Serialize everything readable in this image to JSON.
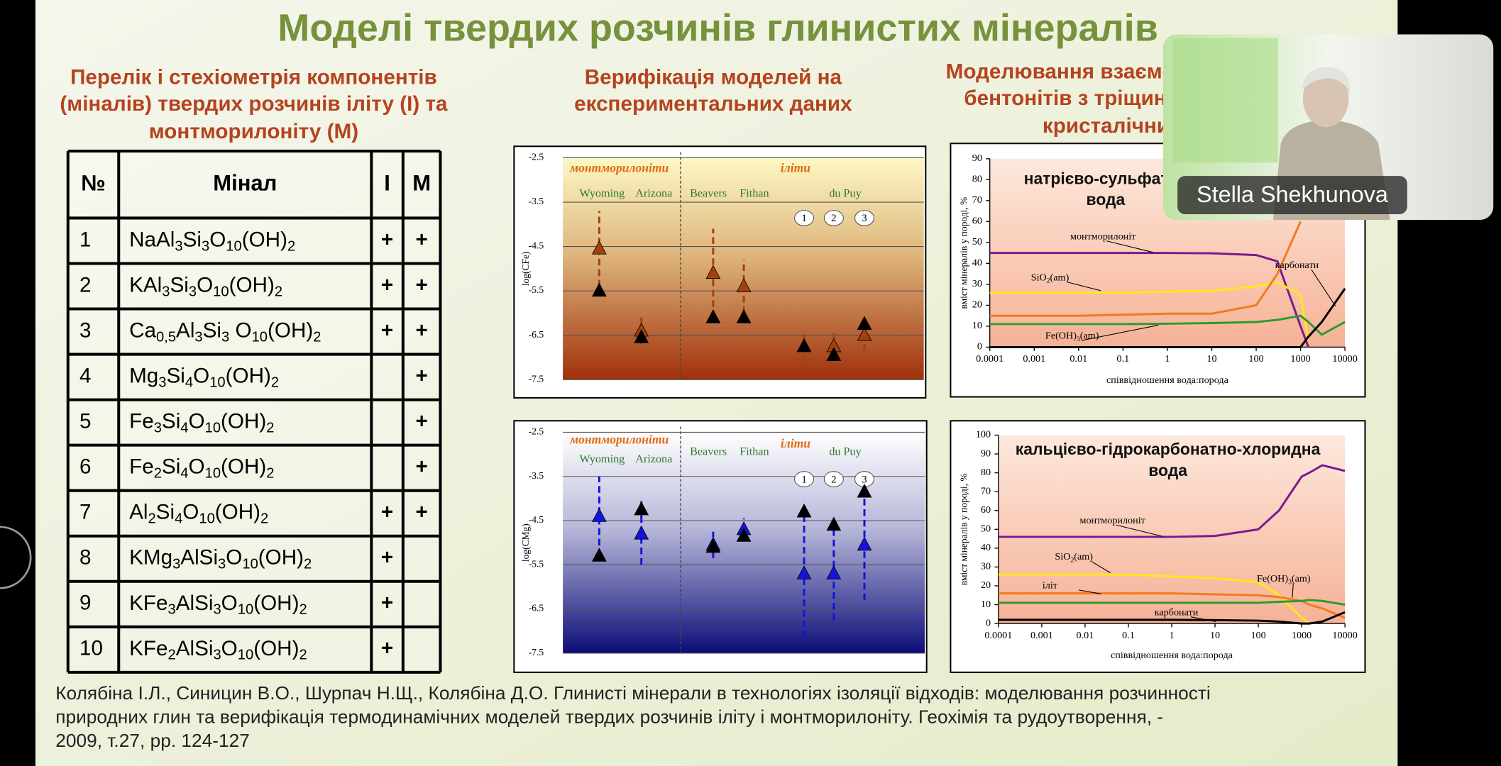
{
  "slide": {
    "title": "Моделі твердих розчинів глинистих мінералів",
    "columns": [
      {
        "heading": [
          "Перелік і стехіометрія компонентів",
          "(міналів) твердих розчинів іліту (I) та",
          "монтморилоніту (M)"
        ]
      },
      {
        "heading": [
          "Верифікація  моделей на",
          "експериментальних даних"
        ]
      },
      {
        "heading": [
          "Моделювання взаємодії",
          "бентонітів з тріщинуватими",
          "кристалічними породами"
        ]
      }
    ],
    "table": {
      "header": [
        "№",
        "Мінал",
        "I",
        "M"
      ],
      "rows": [
        [
          1,
          [
            "NaAl",
            "3",
            "Si",
            "3",
            "O",
            "10",
            "(OH)",
            "2"
          ],
          "+",
          "+"
        ],
        [
          2,
          [
            "KAl",
            "3",
            "Si",
            "3",
            "O",
            "10",
            "(OH)",
            "2"
          ],
          "+",
          "+"
        ],
        [
          3,
          [
            "Ca",
            "0,5",
            "Al",
            "3",
            "Si",
            "3",
            " O",
            "10",
            "(OH)",
            "2"
          ],
          "+",
          "+"
        ],
        [
          4,
          [
            "Mg",
            "3",
            "Si",
            "4",
            "O",
            "10",
            "(OH)",
            "2"
          ],
          null,
          "+"
        ],
        [
          5,
          [
            "Fe",
            "3",
            "Si",
            "4",
            "O",
            "10",
            "(OH)",
            "2"
          ],
          null,
          "+"
        ],
        [
          6,
          [
            "Fe",
            "2",
            "Si",
            "4",
            "O",
            "10",
            "(OH)",
            "2"
          ],
          null,
          "+"
        ],
        [
          7,
          [
            "Al",
            "2",
            "Si",
            "4",
            "O",
            "10",
            "(OH)",
            "2"
          ],
          "+",
          "+"
        ],
        [
          8,
          [
            "KMg",
            "3",
            "AlSi",
            "3",
            "O",
            "10",
            "(OH)",
            "2"
          ],
          "+",
          null
        ],
        [
          9,
          [
            "KFe",
            "3",
            "AlSi",
            "3",
            "O",
            "10",
            "(OH)",
            "2"
          ],
          "+",
          null
        ],
        [
          10,
          [
            "KFe",
            "2",
            "AlSi",
            "3",
            "O",
            "10",
            "(OH)",
            "2"
          ],
          "+",
          null
        ]
      ]
    },
    "citation": [
      "Колябіна І.Л., Синицин В.О., Шурпач Н.Щ., Колябіна Д.О. Глинисті мінерали в технологіях ізоляції відходів: моделювання розчинності",
      "природних глин та верифікація термодинамічних моделей твердих розчинів іліту і монтморилоніту. Геохімія та рудоутворення, -",
      "2009, т.27, pp. 124-127"
    ]
  },
  "chart_data": [
    {
      "type": "scatter",
      "y_label": "log(CFe)",
      "ylim": [
        -7.5,
        -2.5
      ],
      "yticks": [
        -2.5,
        -3.5,
        -4.5,
        -5.5,
        -6.5,
        -7.5
      ],
      "grid": true,
      "groups": [
        {
          "label": "монтморилоніти",
          "sites": [
            "Wyoming",
            "Arizona"
          ]
        },
        {
          "label": "іліти",
          "sites": [
            "Beavers",
            "Fithan",
            "du Puy"
          ]
        }
      ],
      "samples": [
        1,
        2,
        3
      ],
      "series": [
        {
          "color": "#a3410e",
          "values": [
            -4.55,
            -6.4,
            -5.1,
            -5.4,
            null,
            -6.75,
            -6.5
          ],
          "errors": [
            0.85,
            0.3,
            1.0,
            0.6,
            null,
            0.3,
            0.35
          ]
        },
        {
          "color": "#000000",
          "values": [
            -5.5,
            -6.55,
            -6.1,
            -6.1,
            -6.75,
            -6.95,
            -6.25
          ],
          "errors": [
            null,
            null,
            null,
            null,
            0.35,
            null,
            null
          ]
        }
      ]
    },
    {
      "type": "scatter",
      "y_label": "log(CMg)",
      "ylim": [
        -7.5,
        -2.5
      ],
      "yticks": [
        -2.5,
        -3.5,
        -4.5,
        -5.5,
        -6.5,
        -7.5
      ],
      "grid": true,
      "groups": [
        {
          "label": "монтморилоніти",
          "sites": [
            "Wyoming",
            "Arizona"
          ]
        },
        {
          "label": "іліти",
          "sites": [
            "Beavers",
            "Fithan",
            "du Puy"
          ]
        }
      ],
      "samples": [
        1,
        2,
        3
      ],
      "series": [
        {
          "color": "#1414d8",
          "values": [
            -4.4,
            -4.8,
            -5.05,
            -4.7,
            -5.7,
            -5.7,
            -5.05
          ],
          "errors": [
            0.9,
            0.7,
            0.3,
            0.25,
            1.45,
            1.05,
            1.25
          ]
        },
        {
          "color": "#000000",
          "values": [
            -5.3,
            -4.25,
            -5.1,
            -4.85,
            -4.3,
            -4.6,
            -3.85
          ],
          "errors": [
            null,
            0.2,
            null,
            null,
            null,
            null,
            null
          ]
        }
      ]
    },
    {
      "type": "line",
      "title": [
        "натрієво-сульфатна",
        "вода"
      ],
      "x_label": "співвідношення вода:порода",
      "y_label": "вміст мінералів у породі, %",
      "log_x": true,
      "xlim": [
        0.0001,
        10000
      ],
      "xticks": [
        0.0001,
        0.001,
        0.01,
        0.1,
        1,
        10,
        100,
        1000,
        10000
      ],
      "ylim": [
        0,
        90
      ],
      "yticks": [
        0,
        10,
        20,
        30,
        40,
        50,
        60,
        70,
        80,
        90
      ],
      "grid": false,
      "x": [
        0.0001,
        0.001,
        0.01,
        0.1,
        1,
        10,
        100,
        300,
        1000,
        1500,
        3000,
        10000
      ],
      "series": [
        {
          "name": [
            "монтморилоніт"
          ],
          "color": "#7a1a8c",
          "values": [
            45,
            45,
            45,
            45,
            45,
            44.8,
            44,
            41,
            10,
            0,
            null,
            null
          ]
        },
        {
          "name": [
            "SiO",
            "2",
            "(am)"
          ],
          "color": "#ffe81a",
          "values": [
            26,
            26,
            26,
            26,
            26.5,
            27,
            29,
            31,
            25,
            3,
            null,
            null
          ]
        },
        {
          "color": "#f07c1e",
          "values": [
            15,
            15,
            15,
            15.5,
            16,
            16,
            20,
            35,
            60,
            null,
            null,
            null
          ]
        },
        {
          "name": [
            "Fe(OH)",
            "3",
            "(am)"
          ],
          "color": "#2e9a2e",
          "values": [
            11,
            11,
            11,
            11,
            11.2,
            11.5,
            12,
            13,
            15,
            12,
            6,
            12
          ]
        },
        {
          "name": [
            "карбонати"
          ],
          "color": "#000000",
          "values": [
            0,
            0,
            0,
            0,
            0,
            0,
            0,
            0,
            0,
            5,
            12,
            28
          ]
        }
      ]
    },
    {
      "type": "line",
      "title": [
        "кальцієво-гідрокарбонатно-хлоридна",
        "вода"
      ],
      "x_label": "співвідношення вода:порода",
      "y_label": "вміст мінералів у породі, %",
      "log_x": true,
      "xlim": [
        0.0001,
        10000
      ],
      "xticks": [
        0.0001,
        0.001,
        0.01,
        0.1,
        1,
        10,
        100,
        1000,
        10000
      ],
      "ylim": [
        0,
        100
      ],
      "yticks": [
        0,
        10,
        20,
        30,
        40,
        50,
        60,
        70,
        80,
        90,
        100
      ],
      "grid": false,
      "x": [
        0.0001,
        0.001,
        0.01,
        0.1,
        1,
        10,
        100,
        300,
        1000,
        1500,
        3000,
        10000
      ],
      "series": [
        {
          "name": [
            "монтморилоніт"
          ],
          "color": "#7a1a8c",
          "values": [
            46,
            46,
            46,
            46,
            46,
            46.5,
            50,
            60,
            78,
            80,
            84,
            81
          ]
        },
        {
          "name": [
            "SiO",
            "2",
            "(am)"
          ],
          "color": "#ffe81a",
          "values": [
            26,
            26,
            26,
            26,
            25,
            24,
            22,
            15,
            3,
            0,
            null,
            null
          ]
        },
        {
          "name": [
            "іліт"
          ],
          "color": "#f07c1e",
          "values": [
            16,
            16,
            16,
            16,
            16,
            15.5,
            15,
            14,
            12,
            10,
            8,
            3
          ]
        },
        {
          "name": [
            "Fe(OH)",
            "3",
            "(am)"
          ],
          "color": "#2e9a2e",
          "values": [
            11,
            11,
            11,
            11,
            11,
            11,
            11,
            11.5,
            12,
            12.5,
            12,
            10
          ]
        },
        {
          "name": [
            "карбонати"
          ],
          "color": "#000000",
          "values": [
            2,
            2,
            2,
            2,
            2,
            1.8,
            1.5,
            1,
            0,
            0,
            1,
            6
          ]
        }
      ]
    }
  ],
  "video": {
    "participant": "Stella Shekhunova"
  }
}
